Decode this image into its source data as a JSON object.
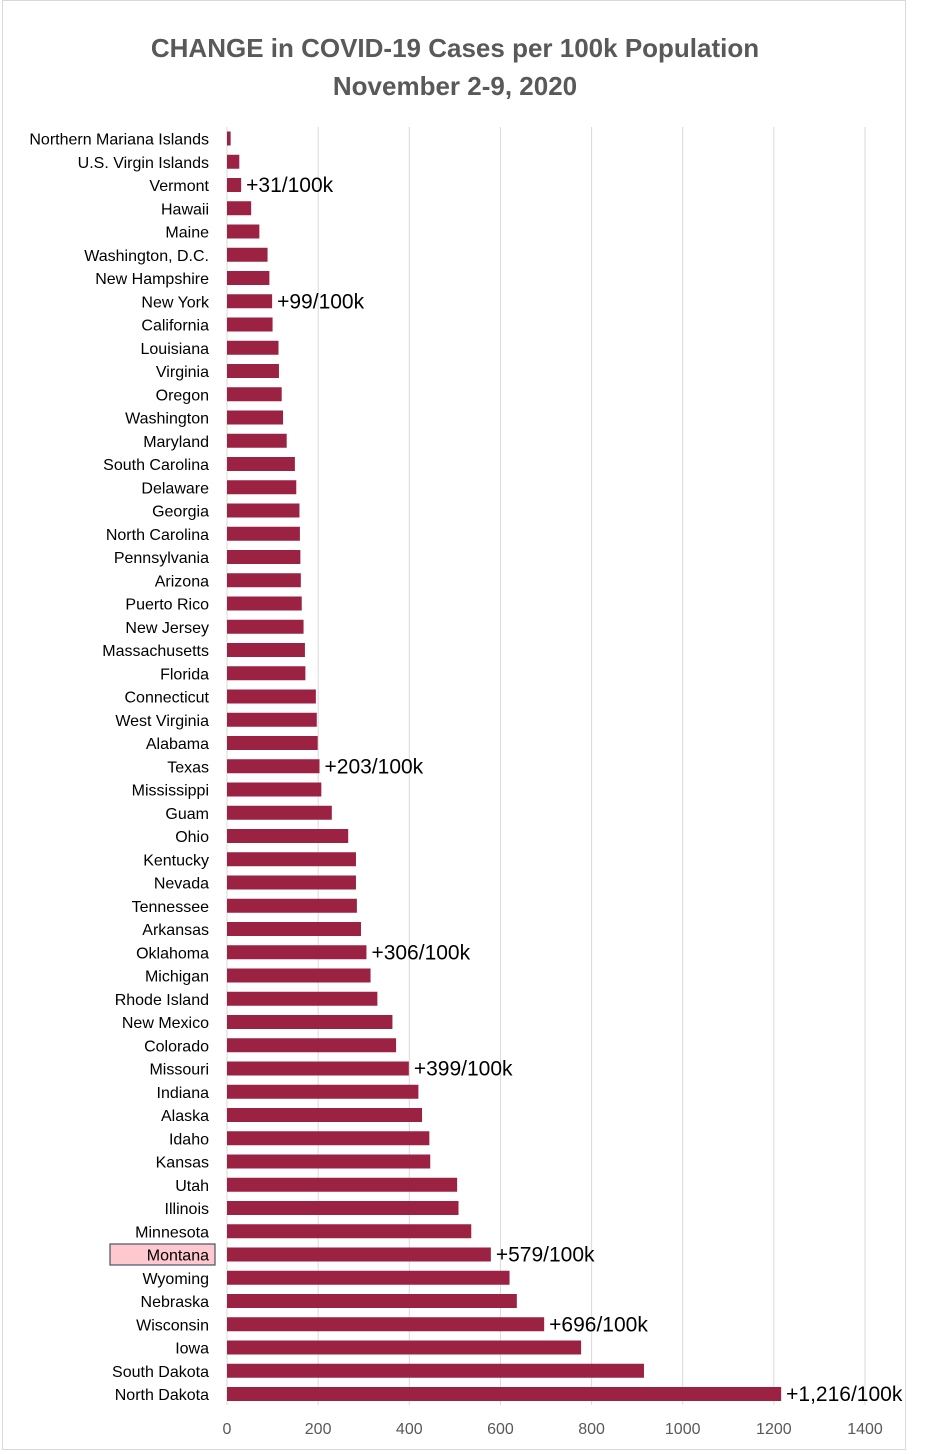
{
  "chart_data": {
    "type": "bar",
    "orientation": "horizontal",
    "title": "CHANGE in COVID-19 Cases per 100k Population",
    "subtitle": "November 2-9, 2020",
    "xlabel": "",
    "ylabel": "",
    "xlim": [
      0,
      1400
    ],
    "xticks": [
      0,
      200,
      400,
      600,
      800,
      1000,
      1200,
      1400
    ],
    "grid": true,
    "bar_color": "#9b2242",
    "highlight_color": "#ffc7ce",
    "highlight_category": "Montana",
    "categories": [
      "Northern Mariana Islands",
      "U.S. Virgin Islands",
      "Vermont",
      "Hawaii",
      "Maine",
      "Washington, D.C.",
      "New Hampshire",
      "New York",
      "California",
      "Louisiana",
      "Virginia",
      "Oregon",
      "Washington",
      "Maryland",
      "South Carolina",
      "Delaware",
      "Georgia",
      "North Carolina",
      "Pennsylvania",
      "Arizona",
      "Puerto Rico",
      "New Jersey",
      "Massachusetts",
      "Florida",
      "Connecticut",
      "West Virginia",
      "Alabama",
      "Texas",
      "Mississippi",
      "Guam",
      "Ohio",
      "Kentucky",
      "Nevada",
      "Tennessee",
      "Arkansas",
      "Oklahoma",
      "Michigan",
      "Rhode Island",
      "New Mexico",
      "Colorado",
      "Missouri",
      "Indiana",
      "Alaska",
      "Idaho",
      "Kansas",
      "Utah",
      "Illinois",
      "Minnesota",
      "Montana",
      "Wyoming",
      "Nebraska",
      "Wisconsin",
      "Iowa",
      "South Dakota",
      "North Dakota"
    ],
    "values": [
      8,
      27,
      31,
      53,
      71,
      89,
      93,
      99,
      100,
      113,
      114,
      120,
      123,
      131,
      149,
      152,
      159,
      160,
      161,
      162,
      164,
      168,
      171,
      172,
      195,
      197,
      199,
      203,
      207,
      230,
      266,
      283,
      283,
      285,
      294,
      306,
      315,
      330,
      363,
      371,
      399,
      420,
      428,
      444,
      446,
      505,
      508,
      536,
      579,
      620,
      636,
      696,
      777,
      915,
      1216
    ],
    "annotations": [
      {
        "category": "Vermont",
        "text": "+31/100k"
      },
      {
        "category": "New York",
        "text": "+99/100k"
      },
      {
        "category": "Texas",
        "text": "+203/100k"
      },
      {
        "category": "Oklahoma",
        "text": "+306/100k"
      },
      {
        "category": "Missouri",
        "text": "+399/100k"
      },
      {
        "category": "Montana",
        "text": "+579/100k"
      },
      {
        "category": "Wisconsin",
        "text": "+696/100k"
      },
      {
        "category": "North Dakota",
        "text": "+1,216/100k"
      }
    ]
  }
}
